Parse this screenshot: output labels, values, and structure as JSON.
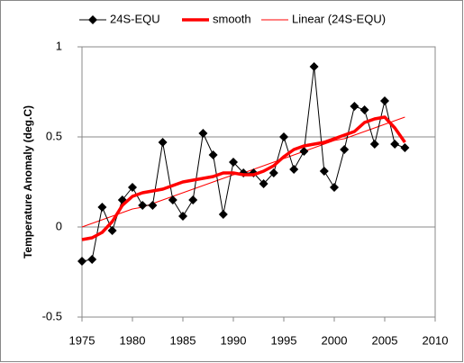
{
  "chart_data": {
    "type": "line",
    "y_label": "Temperature Anomaly (deg.C)",
    "x": [
      1975,
      1976,
      1977,
      1978,
      1979,
      1980,
      1981,
      1982,
      1983,
      1984,
      1985,
      1986,
      1987,
      1988,
      1989,
      1990,
      1991,
      1992,
      1993,
      1994,
      1995,
      1996,
      1997,
      1998,
      1999,
      2000,
      2001,
      2002,
      2003,
      2004,
      2005,
      2006,
      2007
    ],
    "series": [
      {
        "name": "24S-EQU",
        "color": "#000000",
        "marker": "diamond",
        "values": [
          -0.19,
          -0.18,
          0.11,
          -0.02,
          0.15,
          0.22,
          0.12,
          0.12,
          0.47,
          0.15,
          0.06,
          0.15,
          0.52,
          0.4,
          0.07,
          0.36,
          0.3,
          0.3,
          0.24,
          0.3,
          0.5,
          0.32,
          0.42,
          0.89,
          0.31,
          0.22,
          0.43,
          0.67,
          0.65,
          0.46,
          0.7,
          0.46,
          0.44
        ]
      },
      {
        "name": "smooth",
        "color": "#ff0000",
        "values": [
          -0.07,
          -0.06,
          -0.03,
          0.03,
          0.12,
          0.17,
          0.19,
          0.2,
          0.21,
          0.23,
          0.25,
          0.26,
          0.27,
          0.28,
          0.3,
          0.3,
          0.29,
          0.29,
          0.31,
          0.34,
          0.39,
          0.43,
          0.45,
          0.46,
          0.47,
          0.49,
          0.51,
          0.53,
          0.58,
          0.6,
          0.61,
          0.55,
          0.47
        ]
      },
      {
        "name": "Linear (24S-EQU)",
        "color": "#ff0000",
        "values": [
          0.0,
          0.02,
          0.04,
          0.06,
          0.08,
          0.1,
          0.11,
          0.13,
          0.15,
          0.17,
          0.19,
          0.21,
          0.23,
          0.25,
          0.27,
          0.29,
          0.3,
          0.32,
          0.34,
          0.36,
          0.38,
          0.4,
          0.42,
          0.44,
          0.46,
          0.48,
          0.49,
          0.51,
          0.53,
          0.55,
          0.57,
          0.59,
          0.61
        ]
      }
    ],
    "xlim": [
      1975,
      2010
    ],
    "xticks": [
      1975,
      1980,
      1985,
      1990,
      1995,
      2000,
      2005,
      2010
    ],
    "ylim": [
      -0.5,
      1
    ],
    "yticks": [
      -0.5,
      0,
      0.5,
      1
    ],
    "grid": true,
    "legend": "top"
  }
}
